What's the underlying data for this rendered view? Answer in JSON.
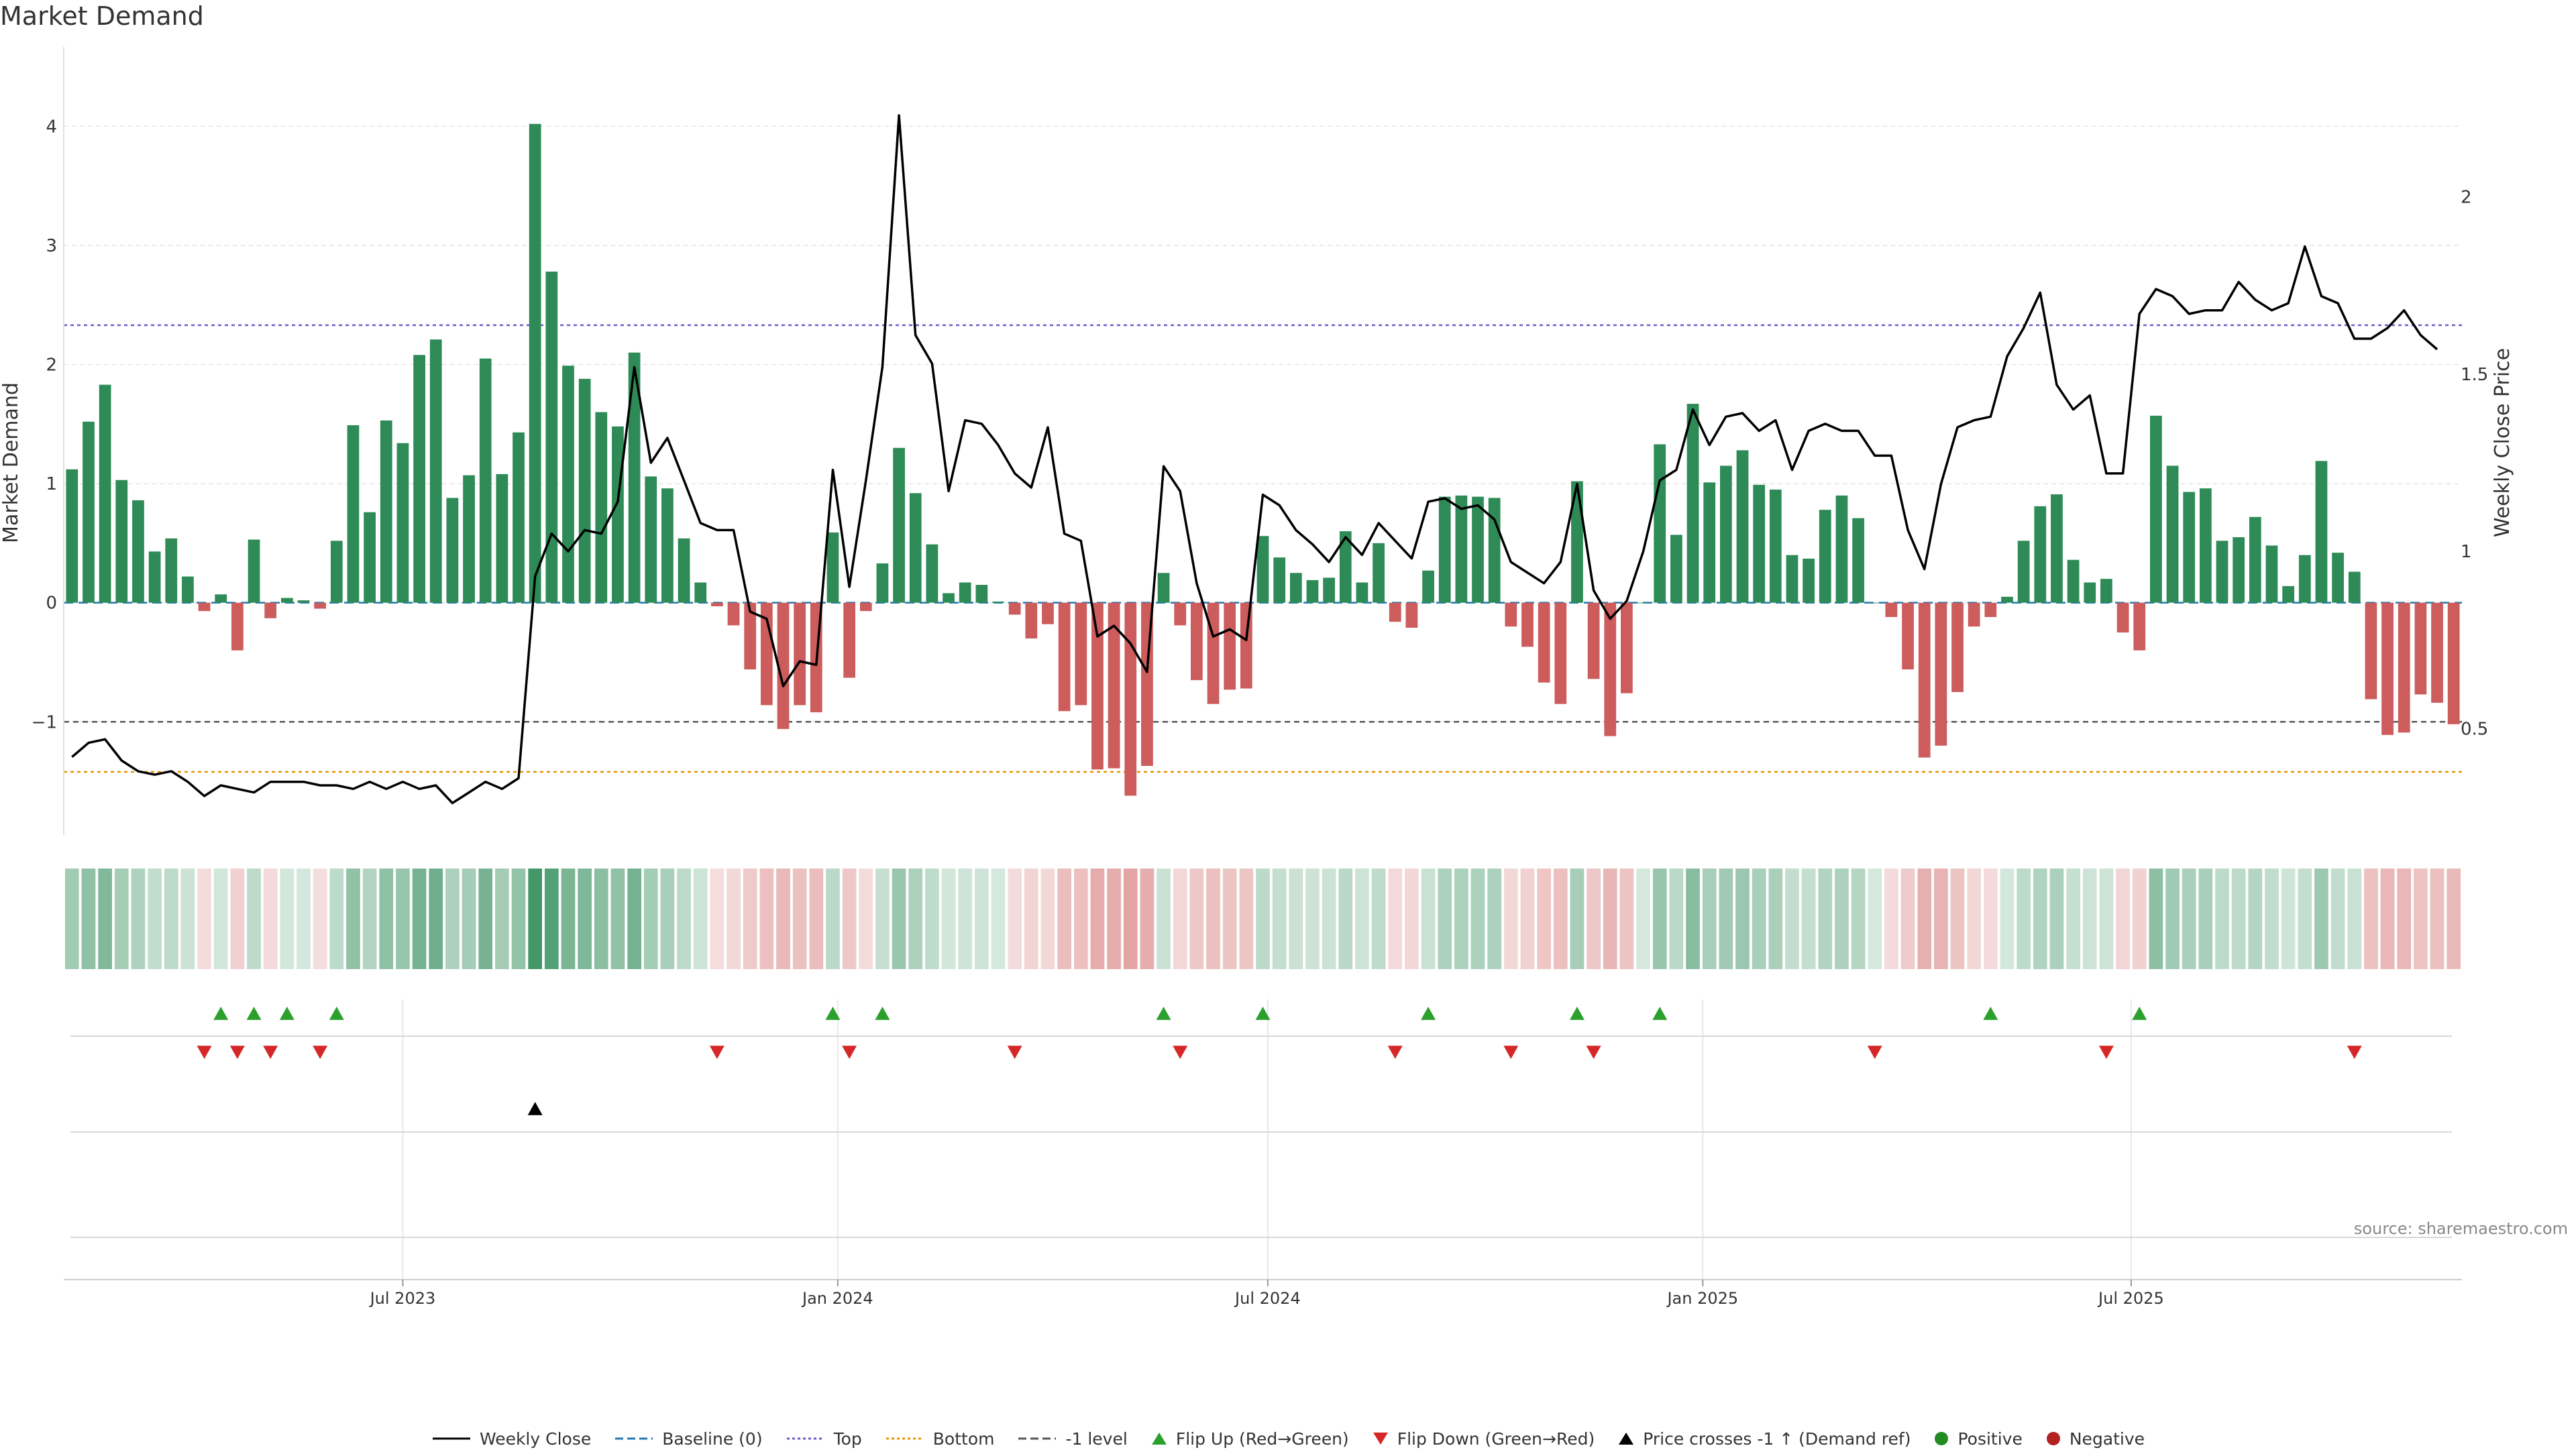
{
  "title": "Market Demand",
  "source": "source: sharemaestro.com",
  "colors": {
    "positive": "#2e8b57",
    "negative": "#cd5c5c",
    "close": "#000000",
    "baseline": "#1f77b4",
    "top": "#6a5acd",
    "bottom": "#e69500",
    "minus1": "#555555",
    "flip_up": "#2ca02c",
    "flip_down": "#d62728",
    "cross": "#000000",
    "dot_positive": "#228b22",
    "dot_negative": "#b22222"
  },
  "legend": [
    {
      "key": "close",
      "label": "Weekly Close",
      "marker": "line-solid"
    },
    {
      "key": "baseline",
      "label": "Baseline (0)",
      "marker": "line-dash"
    },
    {
      "key": "top",
      "label": "Top",
      "marker": "line-dot"
    },
    {
      "key": "bottom",
      "label": "Bottom",
      "marker": "line-dot"
    },
    {
      "key": "minus1",
      "label": "-1 level",
      "marker": "line-dash"
    },
    {
      "key": "flip_up",
      "label": "Flip Up (Red→Green)",
      "marker": "tri-up"
    },
    {
      "key": "flip_down",
      "label": "Flip Down (Green→Red)",
      "marker": "tri-down"
    },
    {
      "key": "cross",
      "label": "Price crosses -1 ↑ (Demand ref)",
      "marker": "tri-up"
    },
    {
      "key": "dot_positive",
      "label": "Positive",
      "marker": "dot"
    },
    {
      "key": "dot_negative",
      "label": "Negative",
      "marker": "dot"
    }
  ],
  "chart_data": {
    "type": "bar",
    "title": "Market Demand",
    "ylabel": "Market Demand",
    "y2label": "Weekly Close Price",
    "ylim": [
      -1.95,
      4.3
    ],
    "y2lim": [
      0.2,
      2.3
    ],
    "yticks": [
      -1,
      0,
      1,
      2,
      3,
      4
    ],
    "y2ticks": [
      0.5,
      1,
      1.5,
      2
    ],
    "ytick_labels": [
      "−1",
      "0",
      "1",
      "2",
      "3",
      "4"
    ],
    "y2tick_labels": [
      "0.5",
      "1",
      "1.5",
      "2"
    ],
    "reference_lines": {
      "baseline": 0,
      "top": 2.33,
      "bottom": -1.42,
      "minus1": -1.0
    },
    "xticks": [
      {
        "week": 20.5,
        "label": "Jul 2023"
      },
      {
        "week": 46.8,
        "label": "Jan 2024"
      },
      {
        "week": 72.8,
        "label": "Jul 2024"
      },
      {
        "week": 99.1,
        "label": "Jan 2025"
      },
      {
        "week": 125,
        "label": "Jul 2025"
      }
    ],
    "series": [
      {
        "name": "Market Demand",
        "kind": "bar",
        "values": [
          1.12,
          1.52,
          1.83,
          1.03,
          0.86,
          0.43,
          0.54,
          0.22,
          -0.07,
          0.07,
          -0.4,
          0.53,
          -0.13,
          0.04,
          0.02,
          -0.05,
          0.52,
          1.49,
          0.76,
          1.53,
          1.34,
          2.08,
          2.21,
          0.88,
          1.07,
          2.05,
          1.08,
          1.43,
          4.02,
          2.78,
          1.99,
          1.88,
          1.6,
          1.48,
          2.1,
          1.06,
          0.96,
          0.54,
          0.17,
          -0.03,
          -0.19,
          -0.56,
          -0.86,
          -1.06,
          -0.86,
          -0.92,
          0.59,
          -0.63,
          -0.07,
          0.33,
          1.3,
          0.92,
          0.49,
          0.08,
          0.17,
          0.15,
          0.01,
          -0.1,
          -0.3,
          -0.18,
          -0.91,
          -0.86,
          -1.4,
          -1.39,
          -1.62,
          -1.37,
          0.25,
          -0.19,
          -0.65,
          -0.85,
          -0.73,
          -0.72,
          0.56,
          0.38,
          0.25,
          0.19,
          0.21,
          0.6,
          0.17,
          0.5,
          -0.16,
          -0.21,
          0.27,
          0.89,
          0.9,
          0.89,
          0.88,
          -0.2,
          -0.37,
          -0.67,
          -0.85,
          1.02,
          -0.64,
          -1.12,
          -0.76,
          0.0,
          1.33,
          0.57,
          1.67,
          1.01,
          1.15,
          1.28,
          0.99,
          0.95,
          0.4,
          0.37,
          0.78,
          0.9,
          0.71,
          0.0,
          -0.12,
          -0.56,
          -1.3,
          -1.2,
          -0.75,
          -0.2,
          -0.12,
          0.05,
          0.52,
          0.81,
          0.91,
          0.36,
          0.17,
          0.2,
          -0.25,
          -0.4,
          1.57,
          1.15,
          0.93,
          0.96,
          0.52,
          0.55,
          0.72,
          0.48,
          0.14,
          0.4,
          1.19,
          0.42,
          0.26,
          -0.81,
          -1.11,
          -1.09,
          -0.77,
          -0.84,
          -1.02
        ]
      },
      {
        "name": "Weekly Close",
        "kind": "line",
        "axis": "y2",
        "values": [
          0.42,
          0.46,
          0.47,
          0.41,
          0.38,
          0.37,
          0.38,
          0.35,
          0.31,
          0.34,
          0.33,
          0.32,
          0.35,
          0.35,
          0.35,
          0.34,
          0.34,
          0.33,
          0.35,
          0.33,
          0.35,
          0.33,
          0.34,
          0.29,
          0.32,
          0.35,
          0.33,
          0.36,
          0.93,
          1.05,
          1.0,
          1.06,
          1.05,
          1.14,
          1.52,
          1.25,
          1.32,
          1.2,
          1.08,
          1.06,
          1.06,
          0.83,
          0.81,
          0.62,
          0.69,
          0.68,
          1.23,
          0.9,
          1.2,
          1.52,
          2.23,
          1.61,
          1.53,
          1.17,
          1.37,
          1.36,
          1.3,
          1.22,
          1.18,
          1.35,
          1.05,
          1.03,
          0.76,
          0.79,
          0.74,
          0.66,
          1.24,
          1.17,
          0.91,
          0.76,
          0.78,
          0.75,
          1.16,
          1.13,
          1.06,
          1.02,
          0.97,
          1.04,
          0.99,
          1.08,
          1.03,
          0.98,
          1.14,
          1.15,
          1.12,
          1.13,
          1.09,
          0.97,
          0.94,
          0.91,
          0.97,
          1.19,
          0.89,
          0.81,
          0.86,
          1.0,
          1.2,
          1.23,
          1.4,
          1.3,
          1.38,
          1.39,
          1.34,
          1.37,
          1.23,
          1.34,
          1.36,
          1.34,
          1.34,
          1.27,
          1.27,
          1.06,
          0.95,
          1.19,
          1.35,
          1.37,
          1.38,
          1.55,
          1.63,
          1.73,
          1.47,
          1.4,
          1.44,
          1.22,
          1.22,
          1.67,
          1.74,
          1.72,
          1.67,
          1.68,
          1.68,
          1.76,
          1.71,
          1.68,
          1.7,
          1.86,
          1.72,
          1.7,
          1.6,
          1.6,
          1.63,
          1.68,
          1.61,
          1.57
        ]
      }
    ],
    "events": {
      "flip_up_weeks": [
        9,
        11,
        13,
        16,
        46,
        49,
        66,
        72,
        82,
        91,
        96,
        116,
        125
      ],
      "flip_down_weeks": [
        8,
        10,
        12,
        15,
        39,
        47,
        57,
        67,
        80,
        87,
        92,
        109,
        123,
        138
      ],
      "price_cross_weeks": [
        28
      ]
    }
  }
}
